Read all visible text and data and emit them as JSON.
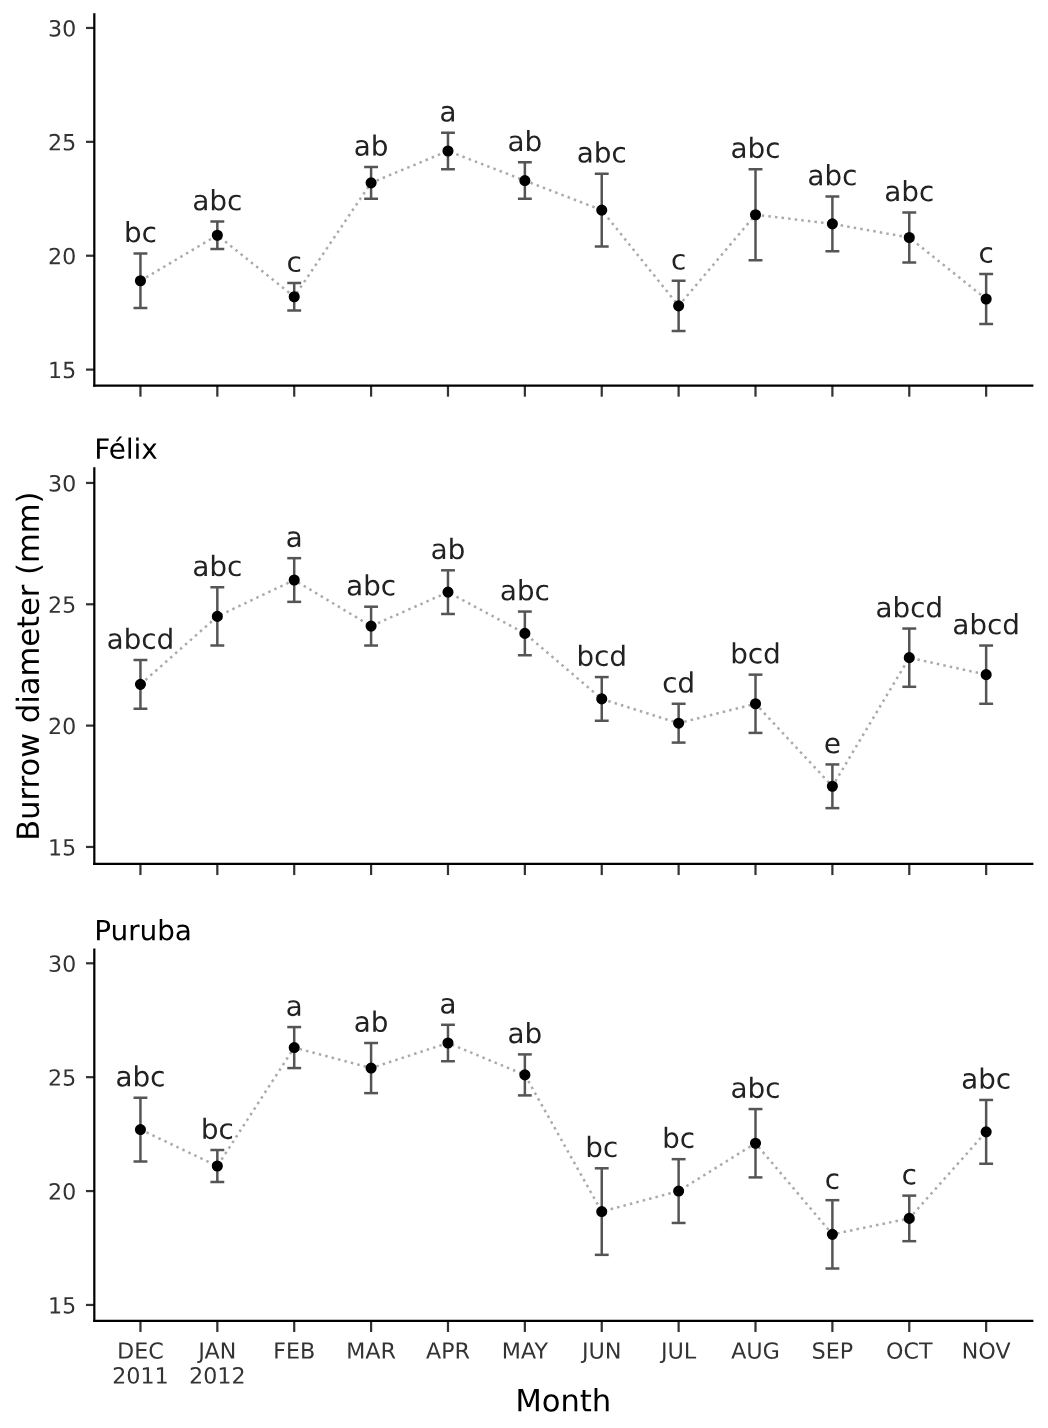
{
  "chart_data": [
    {
      "type": "line",
      "categories": [
        "DEC\n2011",
        "JAN\n2012",
        "FEB",
        "MAR",
        "APR",
        "MAY",
        "JUN",
        "JUL",
        "AUG",
        "SEP",
        "OCT",
        "NOV"
      ],
      "ylim": [
        14.3,
        30.6
      ],
      "yticks": [
        15,
        20,
        25,
        30
      ],
      "tick_labels": "y",
      "marker": "circle",
      "line_style": "dotted",
      "grid": false,
      "legend": false,
      "series": [
        {
          "color": "#000000",
          "values": [
            18.9,
            20.9,
            18.2,
            23.2,
            24.6,
            23.3,
            22.0,
            17.8,
            21.8,
            21.4,
            20.8,
            18.1
          ],
          "errors": [
            1.2,
            0.6,
            0.6,
            0.7,
            0.8,
            0.8,
            1.6,
            1.1,
            2.0,
            1.2,
            1.1,
            1.1
          ]
        }
      ],
      "annotations": [
        {
          "text": "bc",
          "x": "DEC\n2011",
          "y": 20.1
        },
        {
          "text": "abc",
          "x": "JAN\n2012",
          "y": 21.5
        },
        {
          "text": "c",
          "x": "FEB",
          "y": 18.8
        },
        {
          "text": "ab",
          "x": "MAR",
          "y": 23.9
        },
        {
          "text": "a",
          "x": "APR",
          "y": 25.4
        },
        {
          "text": "ab",
          "x": "MAY",
          "y": 24.1
        },
        {
          "text": "abc",
          "x": "JUN",
          "y": 23.6
        },
        {
          "text": "c",
          "x": "JUL",
          "y": 18.9
        },
        {
          "text": "abc",
          "x": "AUG",
          "y": 23.8
        },
        {
          "text": "abc",
          "x": "SEP",
          "y": 22.6
        },
        {
          "text": "abc",
          "x": "OCT",
          "y": 21.9
        },
        {
          "text": "c",
          "x": "NOV",
          "y": 19.2
        }
      ]
    },
    {
      "type": "line",
      "title": "Félix",
      "ylabel": "Burrow diameter (mm)",
      "categories": [
        "DEC\n2011",
        "JAN\n2012",
        "FEB",
        "MAR",
        "APR",
        "MAY",
        "JUN",
        "JUL",
        "AUG",
        "SEP",
        "OCT",
        "NOV"
      ],
      "ylim": [
        14.3,
        30.6
      ],
      "yticks": [
        15,
        20,
        25,
        30
      ],
      "tick_labels": "y",
      "marker": "circle",
      "line_style": "dotted",
      "grid": false,
      "legend": false,
      "series": [
        {
          "color": "#000000",
          "values": [
            21.7,
            24.5,
            26.0,
            24.1,
            25.5,
            23.8,
            21.1,
            20.1,
            20.9,
            17.5,
            22.8,
            22.1
          ],
          "errors": [
            1.0,
            1.2,
            0.9,
            0.8,
            0.9,
            0.9,
            0.9,
            0.8,
            1.2,
            0.9,
            1.2,
            1.2
          ]
        }
      ],
      "annotations": [
        {
          "text": "abcd",
          "x": "DEC\n2011",
          "y": 22.7
        },
        {
          "text": "abc",
          "x": "JAN\n2012",
          "y": 25.7
        },
        {
          "text": "a",
          "x": "FEB",
          "y": 26.9
        },
        {
          "text": "abc",
          "x": "MAR",
          "y": 24.9
        },
        {
          "text": "ab",
          "x": "APR",
          "y": 26.4
        },
        {
          "text": "abc",
          "x": "MAY",
          "y": 24.7
        },
        {
          "text": "bcd",
          "x": "JUN",
          "y": 22.0
        },
        {
          "text": "cd",
          "x": "JUL",
          "y": 20.9
        },
        {
          "text": "bcd",
          "x": "AUG",
          "y": 22.1
        },
        {
          "text": "e",
          "x": "SEP",
          "y": 18.4
        },
        {
          "text": "abcd",
          "x": "OCT",
          "y": 24.0
        },
        {
          "text": "abcd",
          "x": "NOV",
          "y": 23.3
        }
      ]
    },
    {
      "type": "line",
      "title": "Puruba",
      "xlabel": "Month",
      "categories": [
        "DEC\n2011",
        "JAN\n2012",
        "FEB",
        "MAR",
        "APR",
        "MAY",
        "JUN",
        "JUL",
        "AUG",
        "SEP",
        "OCT",
        "NOV"
      ],
      "ylim": [
        14.3,
        30.6
      ],
      "yticks": [
        15,
        20,
        25,
        30
      ],
      "marker": "circle",
      "line_style": "dotted",
      "grid": false,
      "legend": false,
      "series": [
        {
          "color": "#000000",
          "values": [
            22.7,
            21.1,
            26.3,
            25.4,
            26.5,
            25.1,
            19.1,
            20.0,
            22.1,
            18.1,
            18.8,
            22.6
          ],
          "errors": [
            1.4,
            0.7,
            0.9,
            1.1,
            0.8,
            0.9,
            1.9,
            1.4,
            1.5,
            1.5,
            1.0,
            1.4
          ]
        }
      ],
      "annotations": [
        {
          "text": "abc",
          "x": "DEC\n2011",
          "y": 24.1
        },
        {
          "text": "bc",
          "x": "JAN\n2012",
          "y": 21.8
        },
        {
          "text": "a",
          "x": "FEB",
          "y": 27.2
        },
        {
          "text": "ab",
          "x": "MAR",
          "y": 26.5
        },
        {
          "text": "a",
          "x": "APR",
          "y": 27.3
        },
        {
          "text": "ab",
          "x": "MAY",
          "y": 26.0
        },
        {
          "text": "bc",
          "x": "JUN",
          "y": 21.0
        },
        {
          "text": "bc",
          "x": "JUL",
          "y": 21.4
        },
        {
          "text": "abc",
          "x": "AUG",
          "y": 23.6
        },
        {
          "text": "c",
          "x": "SEP",
          "y": 19.6
        },
        {
          "text": "c",
          "x": "OCT",
          "y": 19.8
        },
        {
          "text": "abc",
          "x": "NOV",
          "y": 24.0
        }
      ]
    }
  ]
}
